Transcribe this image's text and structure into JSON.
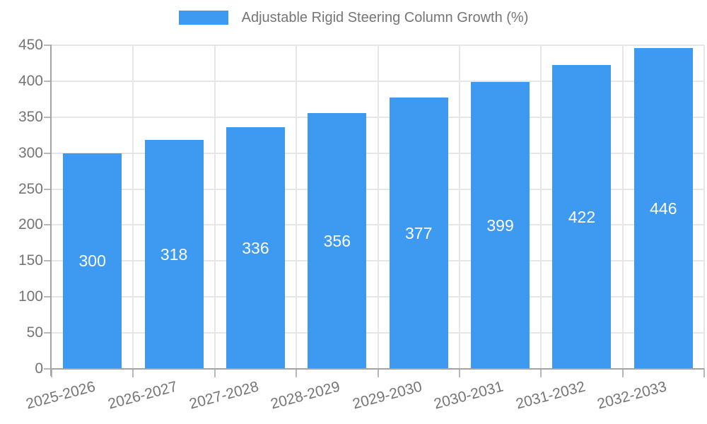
{
  "chart_data": {
    "type": "bar",
    "title": "Adjustable Rigid Steering Column Growth (%)",
    "categories": [
      "2025-2026",
      "2026-2027",
      "2027-2028",
      "2028-2029",
      "2029-2030",
      "2030-2031",
      "2031-2032",
      "2032-2033"
    ],
    "values": [
      300,
      318,
      336,
      356,
      377,
      399,
      422,
      446
    ],
    "xlabel": "",
    "ylabel": "",
    "ylim": [
      0,
      450
    ],
    "yticks": [
      0,
      50,
      100,
      150,
      200,
      250,
      300,
      350,
      400,
      450
    ],
    "grid": true,
    "legend_position": "top",
    "value_label_position": "inside-center",
    "x_tick_rotation_deg": -15,
    "colors": {
      "bar": "#3E9AF0",
      "value_label": "#FFFFFF",
      "axis_text": "#757575",
      "legend_text": "#757575",
      "grid_line": "#E6E6E6",
      "axis_line": "#A3A3A3",
      "tick_mark": "#B8B8B8",
      "background": "#FFFFFF"
    }
  }
}
